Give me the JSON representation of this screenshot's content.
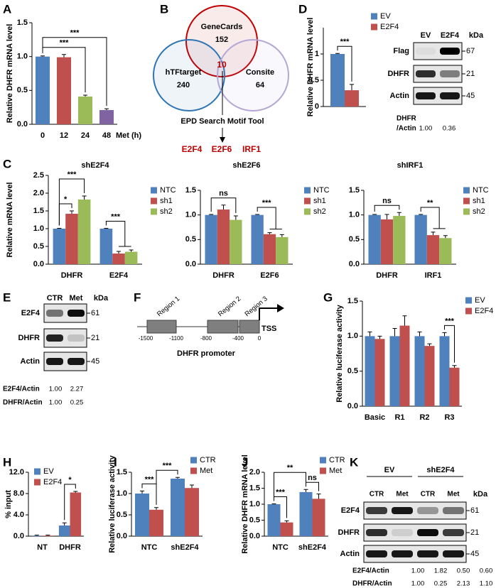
{
  "chart_data": [
    {
      "label": "A",
      "type": "bar",
      "ylabel": "Relative DHFR mRNA level",
      "xlabel": "Met (h)",
      "categories": [
        "0",
        "12",
        "24",
        "48"
      ],
      "series": [
        {
          "colors": [
            "#4f81bd",
            "#c0504d",
            "#9bbb59",
            "#8064a2"
          ],
          "values": [
            1.0,
            0.99,
            0.41,
            0.21
          ],
          "errors": [
            0.01,
            0.04,
            0.02,
            0.02
          ]
        }
      ],
      "ylim": [
        0,
        1.5
      ],
      "yticks": [
        {
          "value": 0,
          "label": "0.0"
        },
        {
          "value": 0.5,
          "label": "0.5"
        },
        {
          "value": 1,
          "label": "1.0"
        },
        {
          "value": 1.5,
          "label": "1.5"
        }
      ],
      "annotations": [
        "***",
        "***"
      ]
    },
    {
      "label": "D",
      "type": "bar",
      "ylabel": "Relative DHFR mRNA level",
      "categories": [
        null
      ],
      "series": [
        {
          "name": "EV",
          "color": "#4f81bd",
          "values": [
            1.0
          ],
          "errors": [
            0.01
          ]
        },
        {
          "name": "E2F4",
          "color": "#c0504d",
          "values": [
            0.31
          ],
          "errors": [
            0.11
          ]
        }
      ],
      "ylim": [
        0,
        1.5
      ],
      "yticks": [
        0,
        0.5,
        1
      ],
      "legend": "upper right",
      "annotations": [
        "***"
      ]
    },
    {
      "label": "C",
      "type": "bar",
      "title": "shE2F4",
      "ylabel": "Relative mRNA level",
      "categories": [
        "DHFR",
        "E2F4"
      ],
      "series": [
        {
          "name": "NTC",
          "color": "#4f81bd",
          "values": [
            1.0,
            1.0
          ],
          "errors": [
            0.01,
            0.01
          ]
        },
        {
          "name": "sh1",
          "color": "#c0504d",
          "values": [
            1.42,
            0.3
          ],
          "errors": [
            0.08,
            0.06
          ]
        },
        {
          "name": "sh2",
          "color": "#9bbb59",
          "values": [
            1.82,
            0.35
          ],
          "errors": [
            0.1,
            0.05
          ]
        }
      ],
      "ylim": [
        0,
        2.5
      ],
      "yticks": [
        {
          "value": 0,
          "label": "0.0"
        },
        {
          "value": 0.5,
          "label": "0.5"
        },
        {
          "value": 1,
          "label": "1.0"
        },
        {
          "value": 1.5,
          "label": "1.5"
        },
        {
          "value": 2,
          "label": "2.0"
        },
        {
          "value": 2.5,
          "label": "2.5"
        }
      ],
      "legend": "upper right",
      "annotations": [
        "*",
        "***",
        "***"
      ]
    },
    {
      "type": "bar",
      "title": "shE2F6",
      "categories": [
        "DHFR",
        "E2F6"
      ],
      "series": [
        {
          "name": "NTC",
          "color": "#4f81bd",
          "values": [
            1.0,
            1.0
          ],
          "errors": [
            0.01,
            0.01
          ]
        },
        {
          "name": "sh1",
          "color": "#c0504d",
          "values": [
            1.11,
            0.61
          ],
          "errors": [
            0.09,
            0.03
          ]
        },
        {
          "name": "sh2",
          "color": "#9bbb59",
          "values": [
            0.9,
            0.55
          ],
          "errors": [
            0.08,
            0.05
          ]
        }
      ],
      "ylim": [
        0,
        1.5
      ],
      "yticks": [
        {
          "value": 0,
          "label": "0.0"
        },
        {
          "value": 0.5,
          "label": "0.5"
        },
        {
          "value": 1,
          "label": "1.0"
        },
        {
          "value": 1.5,
          "label": "1.5"
        }
      ],
      "legend": "upper right",
      "annotations": [
        "ns",
        "***"
      ]
    },
    {
      "type": "bar",
      "title": "shIRF1",
      "categories": [
        "DHFR",
        "IRF1"
      ],
      "series": [
        {
          "name": "NTC",
          "color": "#4f81bd",
          "values": [
            1.0,
            1.0
          ],
          "errors": [
            0.01,
            0.01
          ]
        },
        {
          "name": "sh1",
          "color": "#c0504d",
          "values": [
            0.91,
            0.59
          ],
          "errors": [
            0.1,
            0.06
          ]
        },
        {
          "name": "sh2",
          "color": "#9bbb59",
          "values": [
            0.98,
            0.53
          ],
          "errors": [
            0.07,
            0.05
          ]
        }
      ],
      "ylim": [
        0,
        1.5
      ],
      "yticks": [
        {
          "value": 0,
          "label": "0.0"
        },
        {
          "value": 0.5,
          "label": "0.5"
        },
        {
          "value": 1,
          "label": "1.0"
        },
        {
          "value": 1.5,
          "label": "1.5"
        }
      ],
      "legend": "upper right",
      "annotations": [
        "ns",
        "**"
      ]
    },
    {
      "label": "G",
      "type": "bar",
      "ylabel": "Relative luciferase activity",
      "categories": [
        "Basic",
        "R1",
        "R2",
        "R3"
      ],
      "series": [
        {
          "name": "EV",
          "color": "#4f81bd",
          "values": [
            1.0,
            1.0,
            1.0,
            1.0
          ],
          "errors": [
            0.06,
            0.11,
            0.06,
            0.05
          ]
        },
        {
          "name": "E2F4",
          "color": "#c0504d",
          "values": [
            0.96,
            1.15,
            0.86,
            0.55
          ],
          "errors": [
            0.04,
            0.14,
            0.03,
            0.03
          ]
        }
      ],
      "ylim": [
        0,
        1.5
      ],
      "yticks": [
        {
          "value": 0,
          "label": "0.0"
        },
        {
          "value": 0.5,
          "label": "0.5"
        },
        {
          "value": 1,
          "label": "1.0"
        },
        {
          "value": 1.5,
          "label": "1.5"
        }
      ],
      "legend": "upper right",
      "annotations": [
        "***"
      ]
    },
    {
      "label": "H",
      "type": "bar",
      "ylabel": "% input",
      "categories": [
        "NT",
        "DHFR"
      ],
      "series": [
        {
          "name": "EV",
          "color": "#4f81bd",
          "values": [
            0.1,
            2.0
          ],
          "errors": [
            0.1,
            0.5
          ]
        },
        {
          "name": "E2F4",
          "color": "#c0504d",
          "values": [
            0.1,
            8.2
          ],
          "errors": [
            0.1,
            0.2
          ]
        }
      ],
      "ylim": [
        0,
        12
      ],
      "yticks": [
        {
          "value": 0,
          "label": "0.0"
        },
        {
          "value": 4,
          "label": "4.0"
        },
        {
          "value": 8,
          "label": "8.0"
        },
        {
          "value": 12,
          "label": "12.0"
        }
      ],
      "legend": "upper left",
      "annotations": [
        "*"
      ]
    },
    {
      "label": "I",
      "type": "bar",
      "ylabel": "Relative luciferase activity",
      "categories": [
        "NTC",
        "shE2F4"
      ],
      "series": [
        {
          "name": "CTR",
          "color": "#4f81bd",
          "values": [
            1.0,
            1.35
          ],
          "errors": [
            0.06,
            0.03
          ]
        },
        {
          "name": "Met",
          "color": "#c0504d",
          "values": [
            0.62,
            1.13
          ],
          "errors": [
            0.05,
            0.07
          ]
        }
      ],
      "ylim": [
        0,
        1.5
      ],
      "yticks": [
        {
          "value": 0,
          "label": "0.0"
        },
        {
          "value": 0.5,
          "label": "0.5"
        },
        {
          "value": 1,
          "label": "1.0"
        },
        {
          "value": 1.5,
          "label": "1.5"
        }
      ],
      "legend": "upper right",
      "annotations": [
        "***",
        "***"
      ]
    },
    {
      "label": "J",
      "type": "bar",
      "ylabel": "Relative DHFR mRNA level",
      "categories": [
        "NTC",
        "shE2F4"
      ],
      "series": [
        {
          "name": "CTR",
          "color": "#4f81bd",
          "values": [
            1.0,
            1.38
          ],
          "errors": [
            0.01,
            0.08
          ]
        },
        {
          "name": "Met",
          "color": "#c0504d",
          "values": [
            0.43,
            1.17
          ],
          "errors": [
            0.05,
            0.15
          ]
        }
      ],
      "ylim": [
        0,
        2
      ],
      "yticks": [
        {
          "value": 0,
          "label": "0.0"
        },
        {
          "value": 0.5,
          "label": "0.5"
        },
        {
          "value": 1,
          "label": "1.0"
        },
        {
          "value": 1.5,
          "label": "1.5"
        },
        {
          "value": 2,
          "label": "2.0"
        }
      ],
      "legend": "upper right",
      "annotations": [
        "***",
        "**",
        "ns"
      ]
    }
  ],
  "venn": {
    "label": "B",
    "sets": [
      {
        "name": "GeneCards",
        "count": 152,
        "color": "#c00000"
      },
      {
        "name": "hTFtarget",
        "count": 240,
        "color": "#2e75b6"
      },
      {
        "name": "Consite",
        "count": 64,
        "color": "#b4a7d6"
      }
    ],
    "overlap": 10,
    "tool": "EPD Search Motif Tool",
    "results": [
      "E2F4",
      "E2F6",
      "IRF1"
    ],
    "result_color": "#c00000"
  },
  "promoter": {
    "label": "F",
    "regions": [
      "Region 1",
      "Region 2",
      "Region 3"
    ],
    "positions": [
      -1500,
      -1100,
      -800,
      -400,
      0
    ],
    "tss": "TSS",
    "title": "DHFR promoter"
  },
  "blots": [
    {
      "columns": [
        "EV",
        "E2F4"
      ],
      "unit": "kDa",
      "rows": [
        {
          "name": "Flag",
          "kda": 67
        },
        {
          "name": "DHFR",
          "kda": 21
        },
        {
          "name": "Actin",
          "kda": 45
        }
      ],
      "ratios": [
        {
          "name": [
            "DHFR",
            "/Actin"
          ],
          "values": [
            "1.00",
            "0.36"
          ]
        }
      ]
    },
    {
      "label": "E",
      "columns": [
        "CTR",
        "Met"
      ],
      "unit": "kDa",
      "rows": [
        {
          "name": "E2F4",
          "kda": 61
        },
        {
          "name": "DHFR",
          "kda": 21
        },
        {
          "name": "Actin",
          "kda": 45
        }
      ],
      "ratios": [
        {
          "name": [
            "E2F4/Actin"
          ],
          "values": [
            "1.00",
            "2.27"
          ]
        },
        {
          "name": [
            "DHFR/Actin"
          ],
          "values": [
            "1.00",
            "0.25"
          ]
        }
      ]
    },
    {
      "label": "K",
      "groups": [
        "EV",
        "shE2F4"
      ],
      "columns": [
        "CTR",
        "Met",
        "CTR",
        "Met"
      ],
      "unit": "kDa",
      "rows": [
        {
          "name": "E2F4",
          "kda": 61
        },
        {
          "name": "DHFR",
          "kda": 21
        },
        {
          "name": "Actin",
          "kda": 45
        }
      ],
      "ratios": [
        {
          "name": [
            "E2F4/Actin"
          ],
          "values": [
            "1.00",
            "1.82",
            "0.50",
            "0.60"
          ]
        },
        {
          "name": [
            "DHFR/Actin"
          ],
          "values": [
            "1.00",
            "0.25",
            "2.13",
            "1.10"
          ]
        }
      ]
    }
  ]
}
